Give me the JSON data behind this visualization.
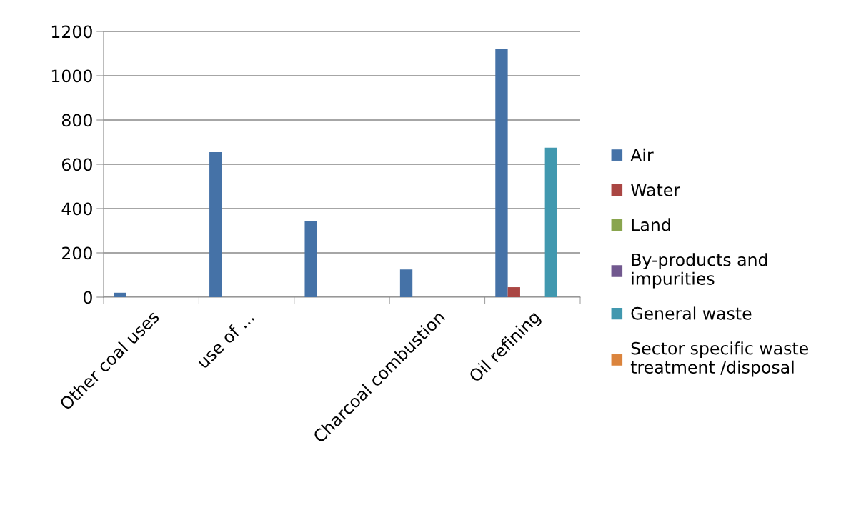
{
  "chart_data": {
    "type": "bar",
    "categories": [
      "Other coal uses",
      "use of ...",
      null,
      "Charcoal combustion",
      "Oil refining"
    ],
    "series": [
      {
        "name": "Air",
        "color": "#4572a7",
        "values": [
          20,
          655,
          345,
          125,
          1120
        ]
      },
      {
        "name": "Water",
        "color": "#aa4643",
        "values": [
          null,
          null,
          null,
          null,
          45
        ]
      },
      {
        "name": "Land",
        "color": "#89a54e",
        "values": [
          null,
          null,
          null,
          null,
          null
        ]
      },
      {
        "name": "By-products and\nimpurities",
        "color": "#71588f",
        "values": [
          null,
          null,
          null,
          null,
          null
        ]
      },
      {
        "name": "General waste",
        "color": "#4198af",
        "values": [
          null,
          null,
          null,
          null,
          675
        ]
      },
      {
        "name": "Sector specific waste\ntreatment /disposal",
        "color": "#db843d",
        "values": [
          null,
          null,
          null,
          null,
          null
        ]
      }
    ],
    "ylim": [
      0,
      1200
    ],
    "yticks": [
      0,
      200,
      400,
      600,
      800,
      1000,
      1200
    ],
    "grid": "y",
    "legend": "right"
  }
}
